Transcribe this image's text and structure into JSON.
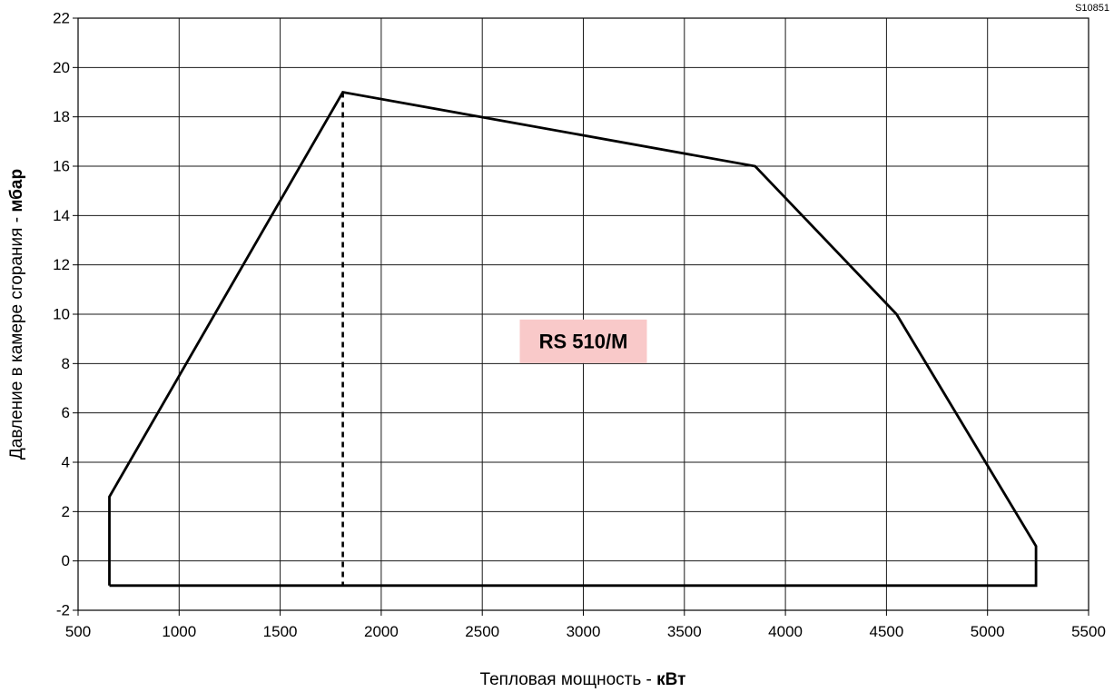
{
  "figure_ref": "S10851",
  "chart_data": {
    "type": "line",
    "title": "",
    "xlabel": {
      "text": "Тепловая мощность - ",
      "unit": "кВт"
    },
    "ylabel": {
      "text": "Давление в камере сгорания - ",
      "unit": "мбар"
    },
    "xlim": [
      500,
      5500
    ],
    "ylim": [
      -2,
      22
    ],
    "x_ticks": [
      500,
      1000,
      1500,
      2000,
      2500,
      3000,
      3500,
      4000,
      4500,
      5000,
      5500
    ],
    "y_ticks": [
      -2,
      0,
      2,
      4,
      6,
      8,
      10,
      12,
      14,
      16,
      18,
      20,
      22
    ],
    "grid": true,
    "annotation": {
      "text": "RS 510/M",
      "x": 3000,
      "y": 8.9,
      "background": "#f9c9c9"
    },
    "series": [
      {
        "style": "solid",
        "x": [
          655,
          655,
          1810,
          3850,
          4550,
          5240,
          5240,
          655
        ],
        "y": [
          -1,
          2.6,
          19,
          16,
          10,
          0.6,
          -1,
          -1
        ]
      },
      {
        "style": "dashed",
        "x": [
          1810,
          1810
        ],
        "y": [
          19,
          -1
        ]
      }
    ]
  }
}
